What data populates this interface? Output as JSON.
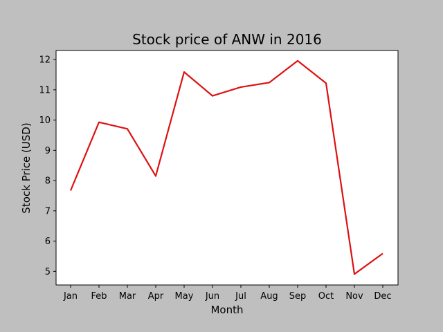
{
  "chart_data": {
    "type": "line",
    "title": "Stock price of ANW in 2016",
    "xlabel": "Month",
    "ylabel": "Stock Price (USD)",
    "categories": [
      "Jan",
      "Feb",
      "Mar",
      "Apr",
      "May",
      "Jun",
      "Jul",
      "Aug",
      "Sep",
      "Oct",
      "Nov",
      "Dec"
    ],
    "series": [
      {
        "values": [
          7.67,
          9.93,
          9.71,
          8.15,
          11.59,
          10.8,
          11.09,
          11.24,
          11.96,
          11.22,
          4.91,
          5.59
        ],
        "color": "#dd1111"
      }
    ],
    "yticks": [
      5,
      6,
      7,
      8,
      9,
      10,
      11,
      12
    ],
    "ylim": [
      4.55,
      12.3
    ],
    "grid": false,
    "legend": "none"
  }
}
